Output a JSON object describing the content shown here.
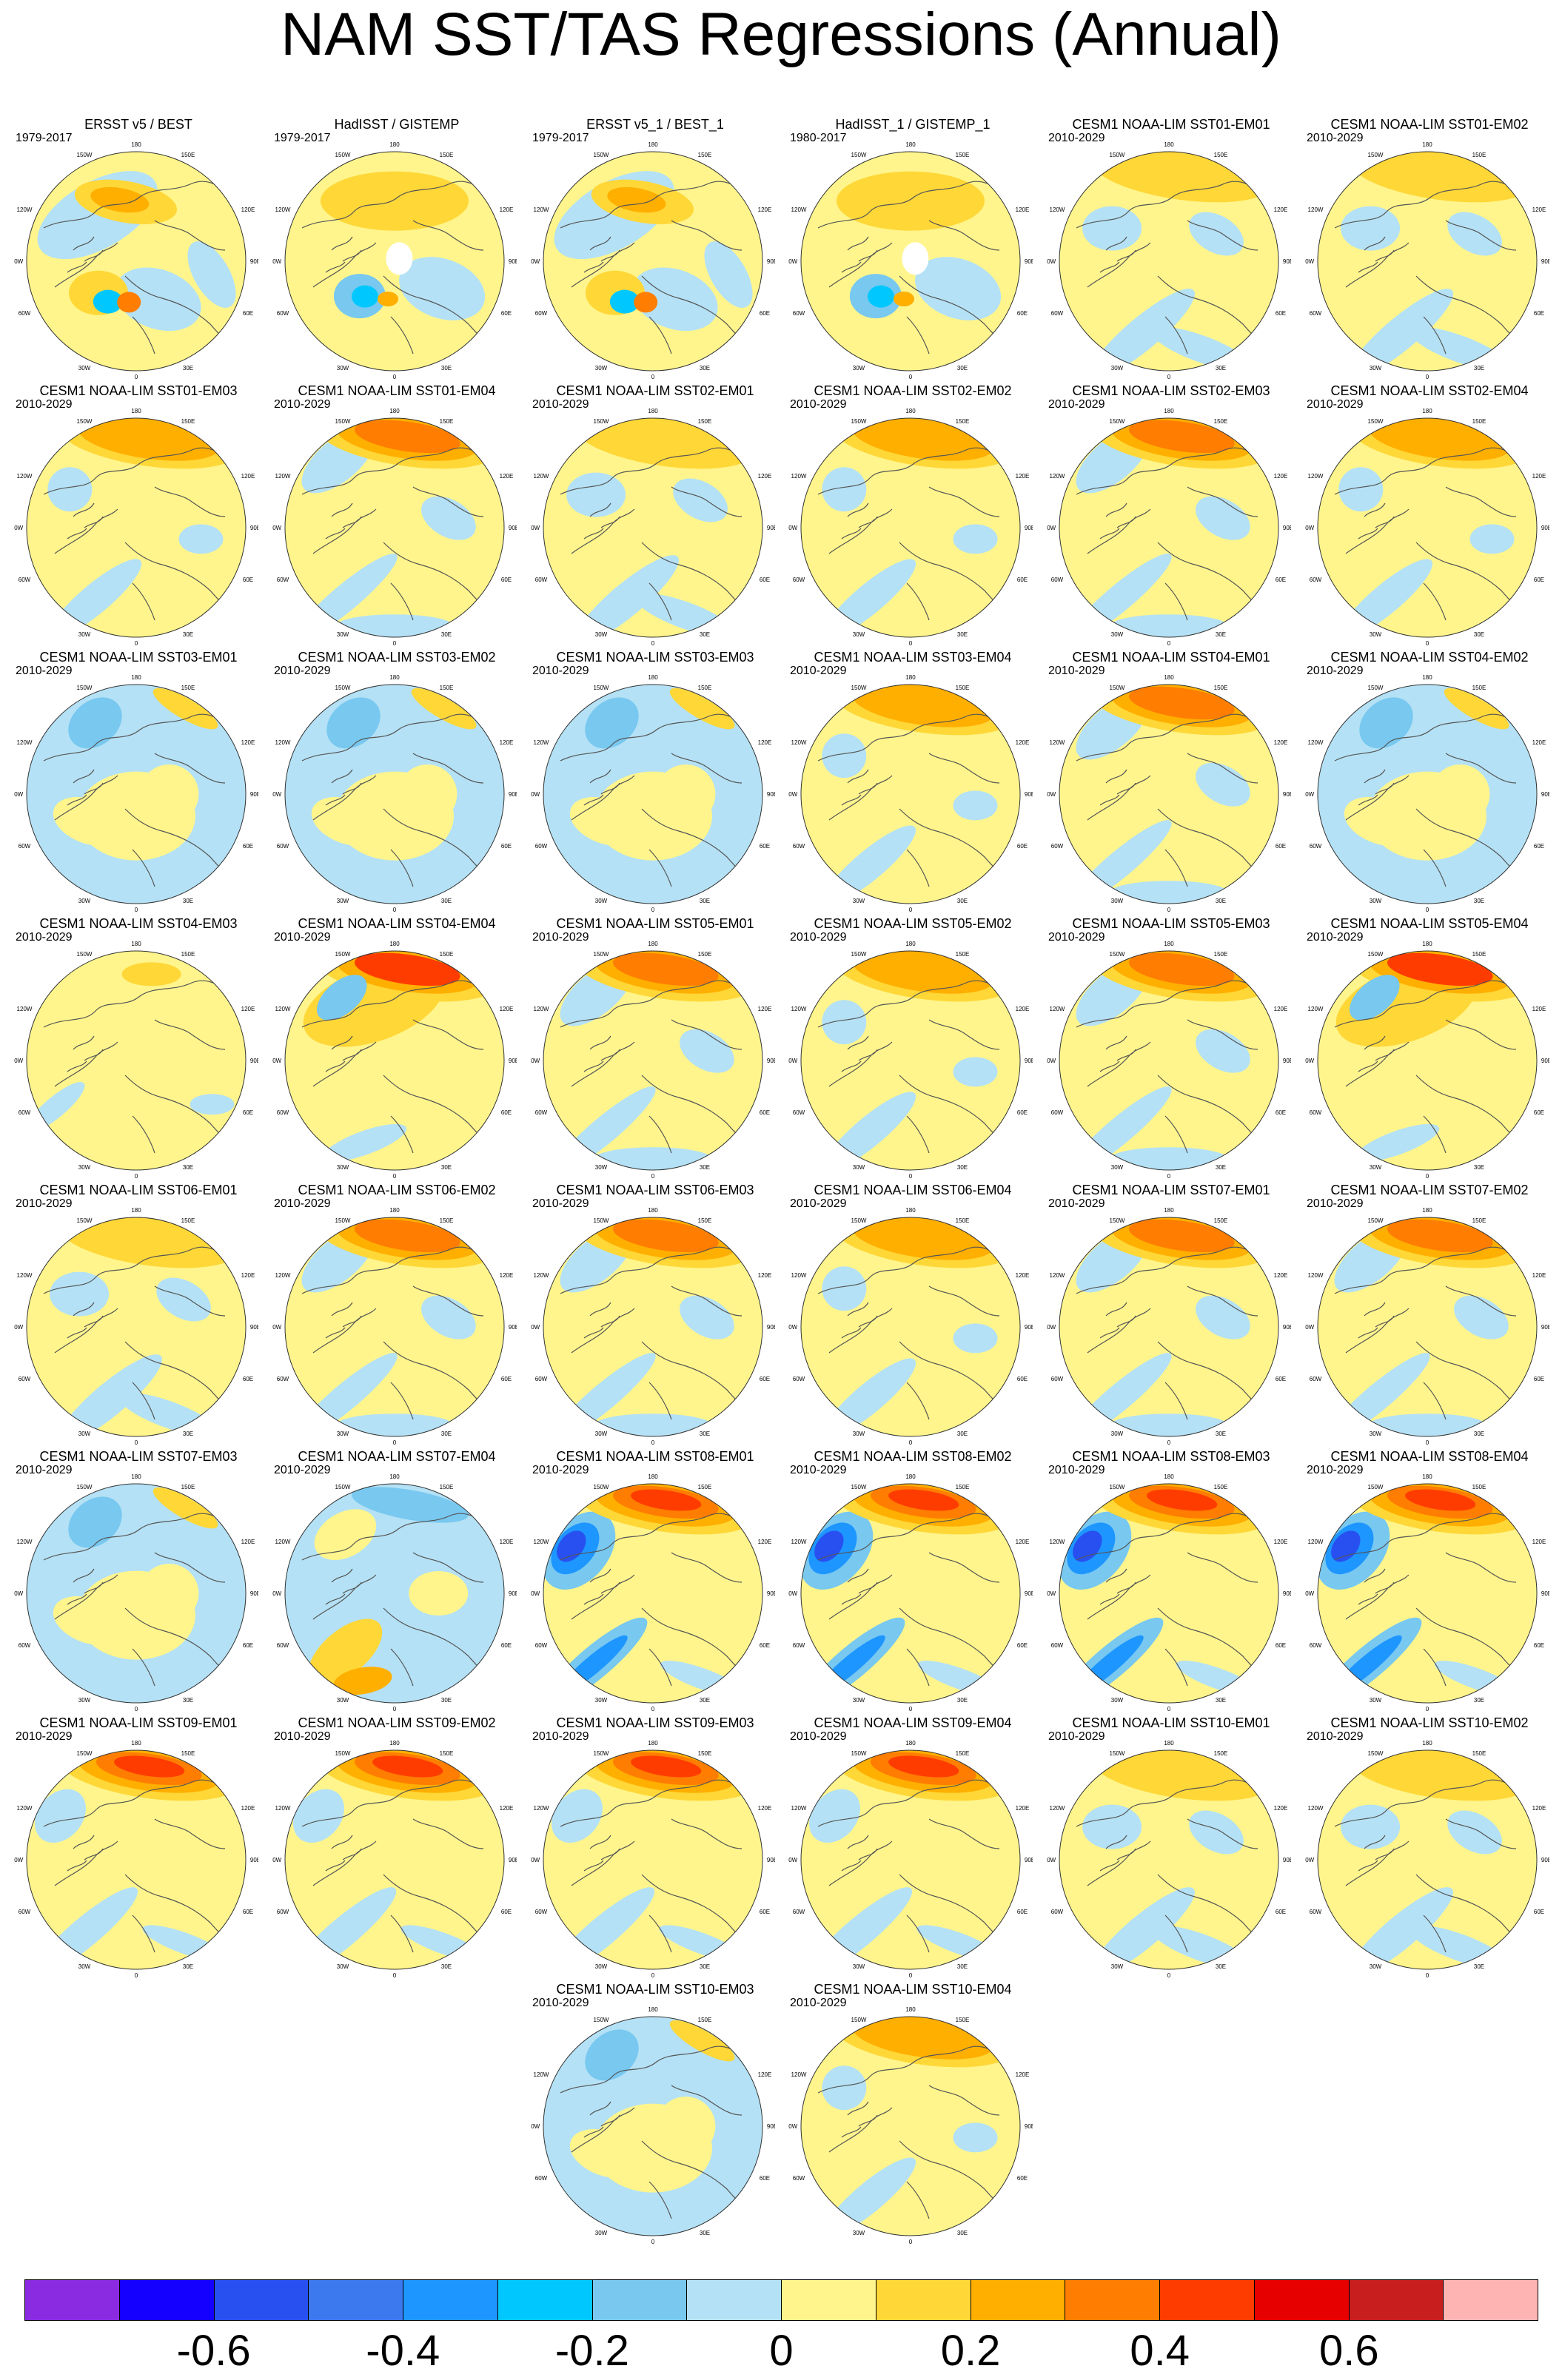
{
  "title": "NAM SST/TAS Regressions (Annual)",
  "colors": {
    "map_labels": "#000000",
    "coastline": "#555555"
  },
  "colorbar": {
    "colors": [
      "#8a2be2",
      "#1400ff",
      "#2850f0",
      "#3c78ee",
      "#1e96ff",
      "#00c8ff",
      "#78c8f0",
      "#b4e1f5",
      "#fff58c",
      "#ffd737",
      "#ffaf00",
      "#ff7d00",
      "#ff3c00",
      "#e60000",
      "#c81e1e",
      "#ffb4b4"
    ],
    "labels": [
      {
        "text": "-0.6",
        "boundary": 2
      },
      {
        "text": "-0.4",
        "boundary": 4
      },
      {
        "text": "-0.2",
        "boundary": 6
      },
      {
        "text": "0",
        "boundary": 8
      },
      {
        "text": "0.2",
        "boundary": 10
      },
      {
        "text": "0.4",
        "boundary": 12
      },
      {
        "text": "0.6",
        "boundary": 14
      }
    ]
  },
  "map_labels": {
    "top": "180",
    "bottom": "0",
    "upper_left": "150W",
    "upper_right": "150E",
    "left_upper": "120W",
    "right_upper": "120E",
    "left_mid": "90W",
    "right_mid": "90E",
    "left_lower": "60W",
    "right_lower": "60E",
    "lower_left": "30W",
    "lower_right": "30E"
  },
  "panels": [
    {
      "title": "ERSST v5 / BEST",
      "period": "1979-2017",
      "pattern": "obs"
    },
    {
      "title": "HadISST / GISTEMP",
      "period": "1979-2017",
      "pattern": "obs2"
    },
    {
      "title": "ERSST v5_1 / BEST_1",
      "period": "1979-2017",
      "pattern": "obs"
    },
    {
      "title": "HadISST_1 / GISTEMP_1",
      "period": "1980-2017",
      "pattern": "obs2"
    },
    {
      "title": "CESM1 NOAA-LIM SST01-EM01",
      "period": "2010-2029",
      "pattern": "weak"
    },
    {
      "title": "CESM1 NOAA-LIM SST01-EM02",
      "period": "2010-2029",
      "pattern": "weak"
    },
    {
      "title": "CESM1 NOAA-LIM SST01-EM03",
      "period": "2010-2029",
      "pattern": "mild"
    },
    {
      "title": "CESM1 NOAA-LIM SST01-EM04",
      "period": "2010-2029",
      "pattern": "strong"
    },
    {
      "title": "CESM1 NOAA-LIM SST02-EM01",
      "period": "2010-2029",
      "pattern": "weak"
    },
    {
      "title": "CESM1 NOAA-LIM SST02-EM02",
      "period": "2010-2029",
      "pattern": "mild"
    },
    {
      "title": "CESM1 NOAA-LIM SST02-EM03",
      "period": "2010-2029",
      "pattern": "strong"
    },
    {
      "title": "CESM1 NOAA-LIM SST02-EM04",
      "period": "2010-2029",
      "pattern": "mild"
    },
    {
      "title": "CESM1 NOAA-LIM SST03-EM01",
      "period": "2010-2029",
      "pattern": "cool"
    },
    {
      "title": "CESM1 NOAA-LIM SST03-EM02",
      "period": "2010-2029",
      "pattern": "cool"
    },
    {
      "title": "CESM1 NOAA-LIM SST03-EM03",
      "period": "2010-2029",
      "pattern": "cool"
    },
    {
      "title": "CESM1 NOAA-LIM SST03-EM04",
      "period": "2010-2029",
      "pattern": "mild"
    },
    {
      "title": "CESM1 NOAA-LIM SST04-EM01",
      "period": "2010-2029",
      "pattern": "strong"
    },
    {
      "title": "CESM1 NOAA-LIM SST04-EM02",
      "period": "2010-2029",
      "pattern": "cool"
    },
    {
      "title": "CESM1 NOAA-LIM SST04-EM03",
      "period": "2010-2029",
      "pattern": "warm"
    },
    {
      "title": "CESM1 NOAA-LIM SST04-EM04",
      "period": "2010-2029",
      "pattern": "warmstrong"
    },
    {
      "title": "CESM1 NOAA-LIM SST05-EM01",
      "period": "2010-2029",
      "pattern": "strong"
    },
    {
      "title": "CESM1 NOAA-LIM SST05-EM02",
      "period": "2010-2029",
      "pattern": "mild"
    },
    {
      "title": "CESM1 NOAA-LIM SST05-EM03",
      "period": "2010-2029",
      "pattern": "strong"
    },
    {
      "title": "CESM1 NOAA-LIM SST05-EM04",
      "period": "2010-2029",
      "pattern": "warmstrong"
    },
    {
      "title": "CESM1 NOAA-LIM SST06-EM01",
      "period": "2010-2029",
      "pattern": "weak"
    },
    {
      "title": "CESM1 NOAA-LIM SST06-EM02",
      "period": "2010-2029",
      "pattern": "strong"
    },
    {
      "title": "CESM1 NOAA-LIM SST06-EM03",
      "period": "2010-2029",
      "pattern": "strong"
    },
    {
      "title": "CESM1 NOAA-LIM SST06-EM04",
      "period": "2010-2029",
      "pattern": "mild"
    },
    {
      "title": "CESM1 NOAA-LIM SST07-EM01",
      "period": "2010-2029",
      "pattern": "strong"
    },
    {
      "title": "CESM1 NOAA-LIM SST07-EM02",
      "period": "2010-2029",
      "pattern": "strong"
    },
    {
      "title": "CESM1 NOAA-LIM SST07-EM03",
      "period": "2010-2029",
      "pattern": "cool"
    },
    {
      "title": "CESM1 NOAA-LIM SST07-EM04",
      "period": "2010-2029",
      "pattern": "coolstrong"
    },
    {
      "title": "CESM1 NOAA-LIM SST08-EM01",
      "period": "2010-2029",
      "pattern": "extreme"
    },
    {
      "title": "CESM1 NOAA-LIM SST08-EM02",
      "period": "2010-2029",
      "pattern": "extreme"
    },
    {
      "title": "CESM1 NOAA-LIM SST08-EM03",
      "period": "2010-2029",
      "pattern": "extreme"
    },
    {
      "title": "CESM1 NOAA-LIM SST08-EM04",
      "period": "2010-2029",
      "pattern": "extreme"
    },
    {
      "title": "CESM1 NOAA-LIM SST09-EM01",
      "period": "2010-2029",
      "pattern": "hot"
    },
    {
      "title": "CESM1 NOAA-LIM SST09-EM02",
      "period": "2010-2029",
      "pattern": "hot"
    },
    {
      "title": "CESM1 NOAA-LIM SST09-EM03",
      "period": "2010-2029",
      "pattern": "hot"
    },
    {
      "title": "CESM1 NOAA-LIM SST09-EM04",
      "period": "2010-2029",
      "pattern": "hot"
    },
    {
      "title": "CESM1 NOAA-LIM SST10-EM01",
      "period": "2010-2029",
      "pattern": "weak"
    },
    {
      "title": "CESM1 NOAA-LIM SST10-EM02",
      "period": "2010-2029",
      "pattern": "weak"
    },
    {
      "title": "CESM1 NOAA-LIM SST10-EM03",
      "period": "2010-2029",
      "pattern": "cool"
    },
    {
      "title": "CESM1 NOAA-LIM SST10-EM04",
      "period": "2010-2029",
      "pattern": "mild"
    }
  ]
}
